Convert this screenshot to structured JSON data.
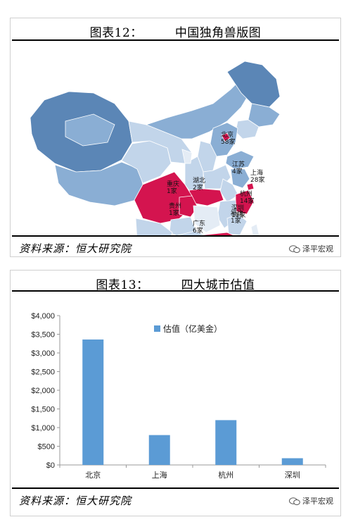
{
  "figure12": {
    "title_prefix": "图表12：",
    "title_text": "中国独角兽版图",
    "source": "资料来源：恒大研究院",
    "watermark": "泽平宏观",
    "map_labels": [
      {
        "city": "北京",
        "count": "58家"
      },
      {
        "city": "江苏",
        "count": "4家"
      },
      {
        "city": "上海",
        "count": "28家"
      },
      {
        "city": "湖北",
        "count": "2家"
      },
      {
        "city": "重庆",
        "count": "1家"
      },
      {
        "city": "杭州",
        "count": "14家"
      },
      {
        "city": "贵州",
        "count": "1家"
      },
      {
        "city": "深圳",
        "count": "11家"
      },
      {
        "city": "福建",
        "count": "1家"
      },
      {
        "city": "广东",
        "count": "6家"
      }
    ],
    "colors": {
      "highlight": "#d4144f",
      "dark": "#5b86b6",
      "mid": "#8aaed4",
      "light": "#c2d5ea",
      "pale": "#e4ecf5",
      "border": "#ffffff"
    }
  },
  "figure13": {
    "title_prefix": "图表13：",
    "title_text": "四大城市估值",
    "source": "资料来源：恒大研究院",
    "watermark": "泽平宏观"
  },
  "chart_data": {
    "type": "bar",
    "categories": [
      "北京",
      "上海",
      "杭州",
      "深圳"
    ],
    "series": [
      {
        "name": "估值（亿美金）",
        "values": [
          3360,
          800,
          1200,
          180
        ],
        "color": "#5b9bd5"
      }
    ],
    "yticks": [
      "$4,000",
      "$3,500",
      "$3,000",
      "$2,500",
      "$2,000",
      "$1,500",
      "$1,000",
      "$500",
      "$0"
    ],
    "ylim": [
      0,
      4000
    ],
    "legend_position": "top-right",
    "grid": false
  }
}
